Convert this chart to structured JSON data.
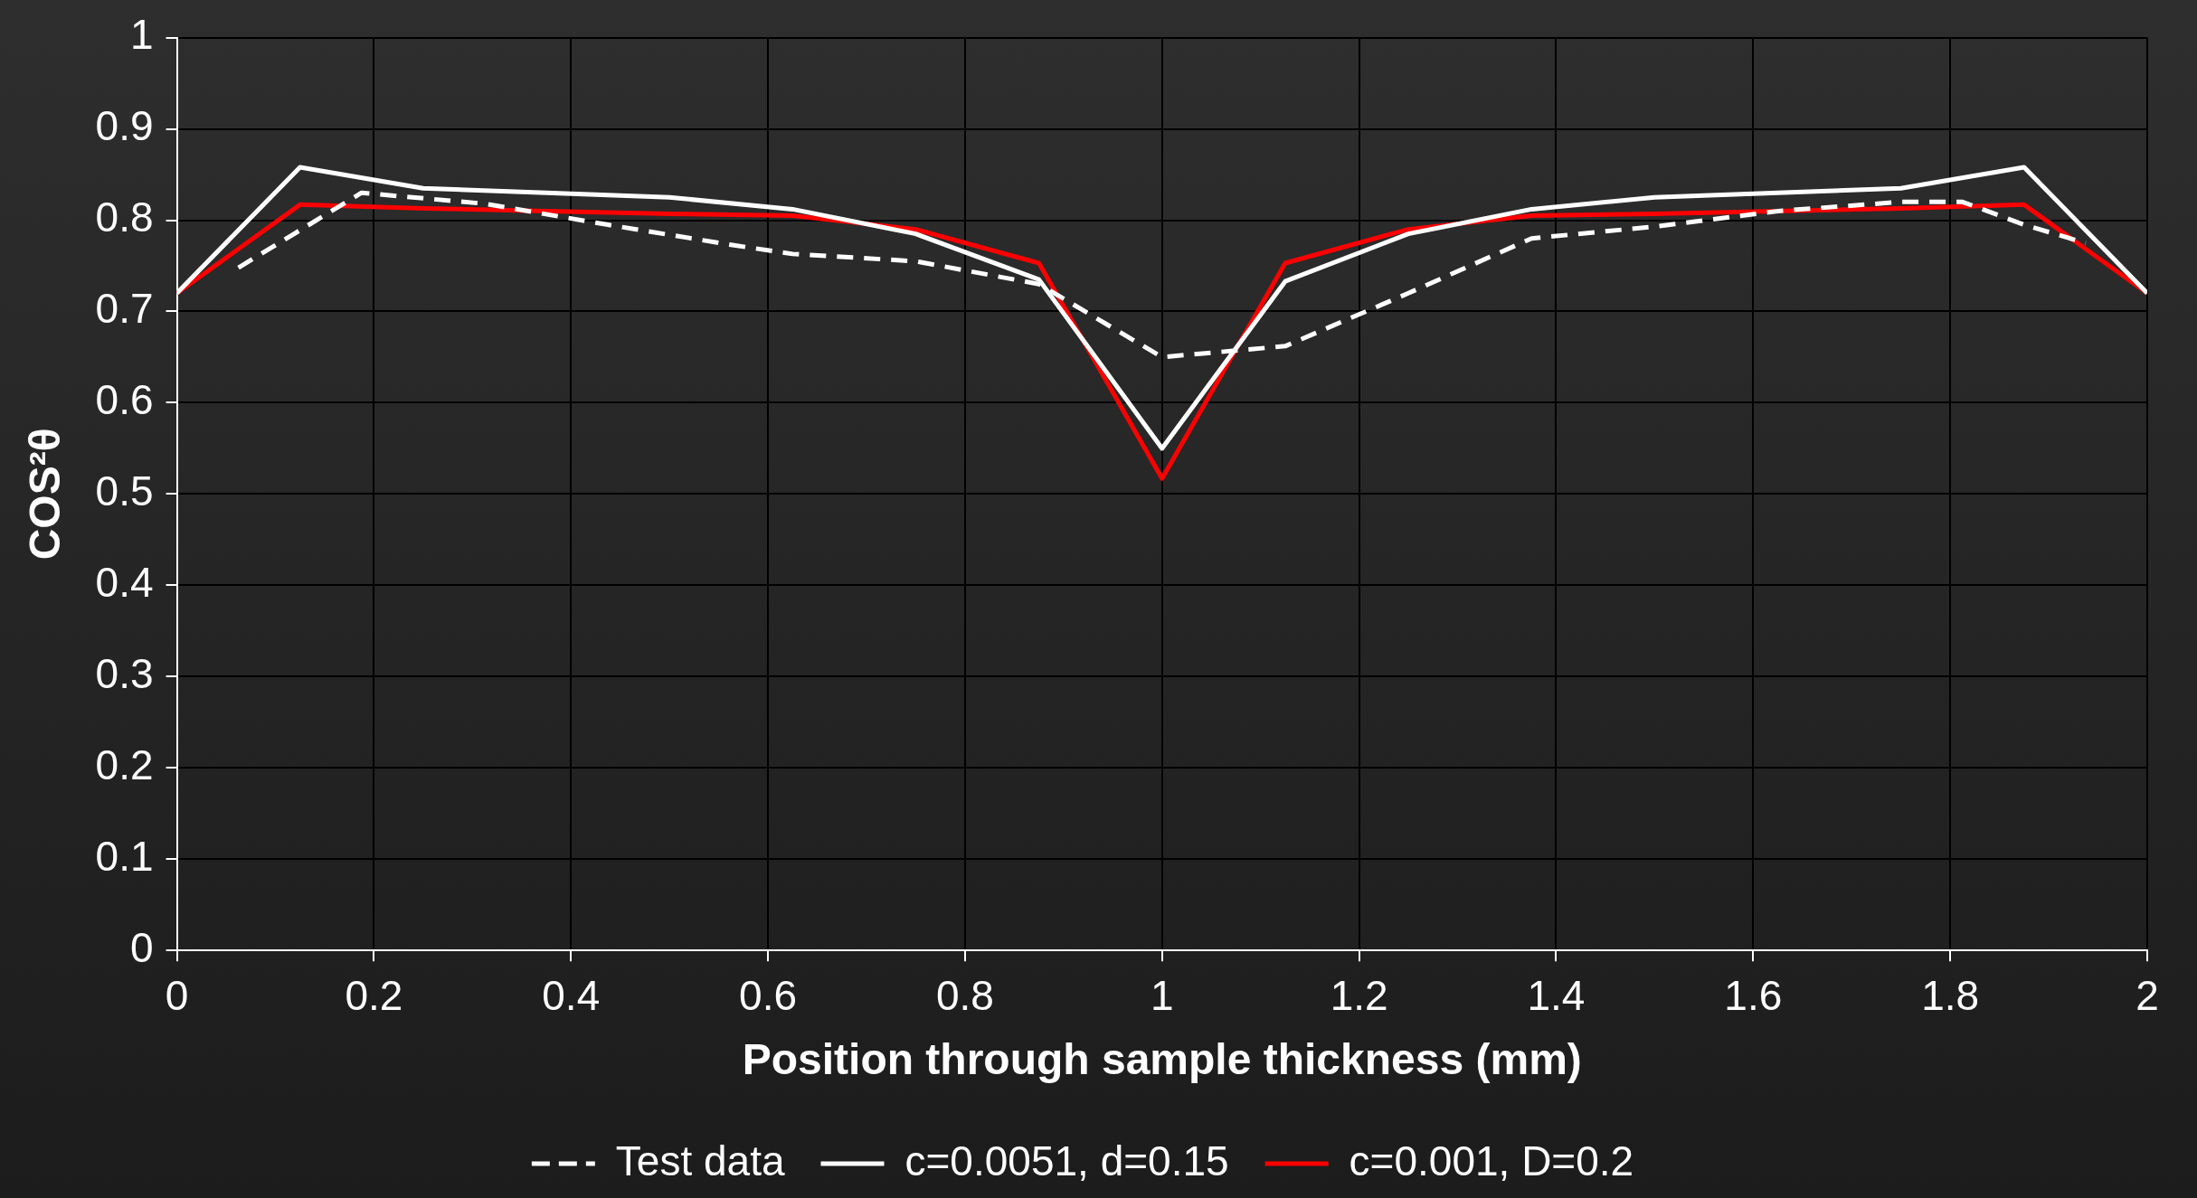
{
  "chart_data": {
    "type": "line",
    "xlabel": "Position through sample thickness (mm)",
    "ylabel": "COS²θ",
    "xlim": [
      0,
      2
    ],
    "xticks": [
      0,
      0.2,
      0.4,
      0.6,
      0.8,
      1,
      1.2,
      1.4,
      1.6,
      1.8,
      2
    ],
    "ylim": [
      0,
      1
    ],
    "yticks": [
      0,
      0.1,
      0.2,
      0.3,
      0.4,
      0.5,
      0.6,
      0.7,
      0.8,
      0.9,
      1
    ],
    "grid": true,
    "legend": "bottom",
    "marker": "none",
    "series": [
      {
        "name": "Test data",
        "color": "#ffffff",
        "line_style": "dashed",
        "x": [
          0.0625,
          0.1875,
          0.3125,
          0.4375,
          0.5625,
          0.625,
          0.75,
          0.875,
          1,
          1.125,
          1.25,
          1.375,
          1.5,
          1.625,
          1.75,
          1.8125,
          1.875,
          1.9375
        ],
        "values": [
          0.748,
          0.83,
          0.818,
          0.795,
          0.773,
          0.763,
          0.755,
          0.73,
          0.65,
          0.662,
          0.72,
          0.78,
          0.793,
          0.81,
          0.82,
          0.82,
          0.795,
          0.775
        ]
      },
      {
        "name": "c=0.0051, d=0.15",
        "color": "#ffffff",
        "line_style": "solid",
        "x": [
          0,
          0.125,
          0.25,
          0.375,
          0.5,
          0.625,
          0.75,
          0.875,
          1,
          1.125,
          1.25,
          1.375,
          1.5,
          1.625,
          1.75,
          1.875,
          2
        ],
        "values": [
          0.72,
          0.858,
          0.835,
          0.83,
          0.825,
          0.812,
          0.785,
          0.735,
          0.55,
          0.733,
          0.785,
          0.812,
          0.825,
          0.83,
          0.835,
          0.858,
          0.72
        ]
      },
      {
        "name": "c=0.001, D=0.2",
        "color": "#ff0000",
        "line_style": "solid",
        "x": [
          0,
          0.125,
          0.25,
          0.375,
          0.5,
          0.625,
          0.75,
          0.875,
          1,
          1.125,
          1.25,
          1.375,
          1.5,
          1.625,
          1.75,
          1.875,
          2
        ],
        "values": [
          0.72,
          0.817,
          0.813,
          0.81,
          0.807,
          0.805,
          0.79,
          0.753,
          0.517,
          0.753,
          0.79,
          0.805,
          0.807,
          0.81,
          0.813,
          0.817,
          0.72
        ]
      }
    ]
  }
}
